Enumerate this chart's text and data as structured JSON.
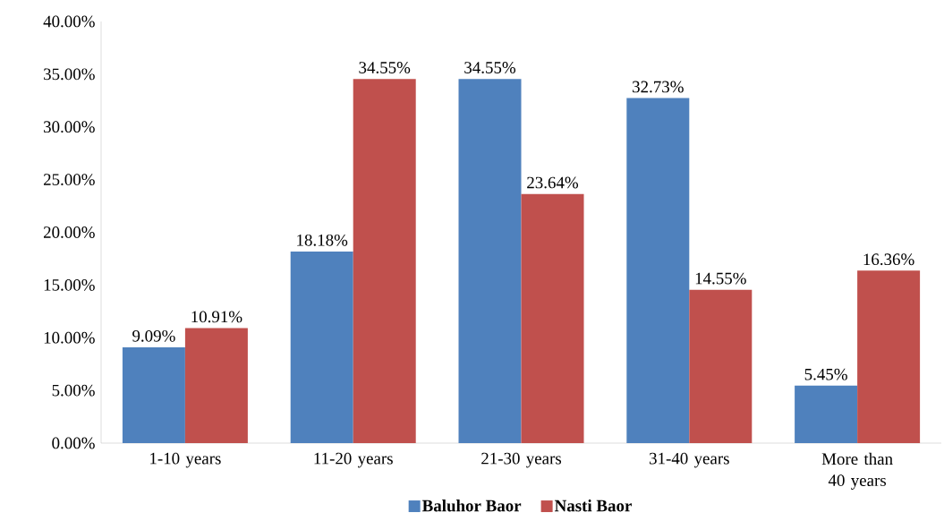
{
  "chart_data": {
    "type": "bar",
    "categories": [
      "1-10 years",
      "11-20 years",
      "21-30 years",
      "31-40 years",
      "More than 40 years"
    ],
    "series": [
      {
        "name": "Baluhor Baor",
        "color": "#4f81bd",
        "values": [
          9.09,
          18.18,
          34.55,
          32.73,
          5.45
        ],
        "value_labels": [
          "9.09%",
          "18.18%",
          "34.55%",
          "32.73%",
          "5.45%"
        ]
      },
      {
        "name": "Nasti Baor",
        "color": "#c0504d",
        "values": [
          10.91,
          34.55,
          23.64,
          14.55,
          16.36
        ],
        "value_labels": [
          "10.91%",
          "34.55%",
          "23.64%",
          "14.55%",
          "16.36%"
        ]
      }
    ],
    "ylim": [
      0,
      40
    ],
    "yticks": [
      {
        "value": 0,
        "label": "0.00%"
      },
      {
        "value": 5,
        "label": "5.00%"
      },
      {
        "value": 10,
        "label": "10.00%"
      },
      {
        "value": 15,
        "label": "15.00%"
      },
      {
        "value": 20,
        "label": "20.00%"
      },
      {
        "value": 25,
        "label": "25.00%"
      },
      {
        "value": 30,
        "label": "30.00%"
      },
      {
        "value": 35,
        "label": "35.00%"
      },
      {
        "value": 40,
        "label": "40.00%"
      }
    ],
    "grid": false,
    "legend": "bottom"
  }
}
